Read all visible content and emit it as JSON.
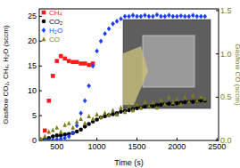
{
  "chart_data": {
    "type": "scatter",
    "x_label": "Time (s)",
    "y_label": "Gasflow CO₂, CH₄, H₂O (sccm)",
    "y2_label": "Gasflow CO (sccm)",
    "xlim": [
      280,
      2520
    ],
    "xticks": [
      500,
      1000,
      1500,
      2000,
      2500
    ],
    "ylim": [
      0,
      26.5
    ],
    "yticks": [
      0,
      5,
      10,
      15,
      20,
      25
    ],
    "y2lim": [
      0,
      1.52
    ],
    "y2ticks": [
      {
        "value": 0,
        "label": "0.0"
      },
      {
        "value": 0.5,
        "label": "0.5"
      },
      {
        "value": 1,
        "label": "1.0"
      },
      {
        "value": 1.5,
        "label": "1.5"
      }
    ],
    "legend": "upper left",
    "series": [
      {
        "name": "CH₄",
        "color": "#ff1a1a",
        "marker": "square",
        "x": [
          300,
          350,
          400,
          450,
          500,
          550,
          600,
          650,
          700,
          750,
          800,
          850,
          900,
          950
        ],
        "values": [
          0,
          2,
          8,
          13,
          16,
          17,
          16.5,
          16,
          15.8,
          15.8,
          15.5,
          15.5,
          15.2,
          15.5
        ]
      },
      {
        "name": "CO₂",
        "color": "#000000",
        "marker": "circle",
        "x": [
          300,
          350,
          400,
          450,
          500,
          550,
          600,
          650,
          700,
          750,
          800,
          850,
          900,
          950,
          1000,
          1050,
          1100,
          1150,
          1200,
          1250,
          1300,
          1350,
          1400,
          1450,
          1500,
          1550,
          1600,
          1650,
          1700,
          1750,
          1800,
          1850,
          1900,
          1950,
          2000,
          2050,
          2100,
          2150,
          2200,
          2250,
          2300,
          2350
        ],
        "values": [
          0,
          0.2,
          0.5,
          0.8,
          1,
          1,
          1.2,
          1.3,
          1.5,
          1.8,
          2.2,
          2.8,
          3.3,
          3.8,
          4.2,
          4.6,
          4.9,
          5.1,
          5.3,
          5.5,
          5.8,
          6,
          6.1,
          6.3,
          6.5,
          6.6,
          6.8,
          6.9,
          7,
          7.1,
          7.2,
          7.3,
          7.4,
          7.4,
          7.5,
          7.6,
          7.7,
          7.8,
          7.8,
          7.9,
          8,
          8
        ]
      },
      {
        "name": "H₂O",
        "color": "#1f3fff",
        "marker": "diamond",
        "x": [
          300,
          350,
          400,
          450,
          500,
          550,
          600,
          650,
          700,
          750,
          800,
          850,
          900,
          950,
          1000,
          1050,
          1100,
          1150,
          1200,
          1250,
          1300,
          1350,
          1400,
          1450,
          1500,
          1550,
          1600,
          1650,
          1700,
          1750,
          1800,
          1850,
          1900,
          1950,
          2000,
          2050,
          2100,
          2150,
          2200,
          2250,
          2300,
          2350
        ],
        "values": [
          0,
          0,
          0,
          0.1,
          0.2,
          0.3,
          0.5,
          0.8,
          1.5,
          3,
          5.5,
          8,
          11,
          15,
          18,
          20,
          21.5,
          22.5,
          23.5,
          24,
          24.5,
          25,
          25,
          25.2,
          25,
          25,
          25.2,
          25,
          25,
          25.3,
          25,
          25,
          25.2,
          25,
          25,
          25.1,
          25,
          25,
          25.2,
          25,
          25,
          25
        ]
      },
      {
        "name": "CO",
        "color": "#7d7d1e",
        "marker": "triangle",
        "axis": "y2",
        "x": [
          300,
          350,
          400,
          450,
          500,
          550,
          600,
          650,
          700,
          750,
          800,
          850,
          900,
          950,
          1000,
          1050,
          1100,
          1150,
          1200,
          1250,
          1300,
          1350,
          1400,
          1450,
          1500,
          1550,
          1600,
          1650,
          1700,
          1750,
          1800,
          1850,
          1900,
          1950,
          2000,
          2050,
          2100,
          2150,
          2200,
          2250,
          2300,
          2350
        ],
        "values": [
          0.02,
          0.05,
          0.1,
          0.12,
          0.15,
          0.1,
          0.18,
          0.2,
          0.15,
          0.22,
          0.25,
          0.2,
          0.28,
          0.25,
          0.3,
          0.27,
          0.32,
          0.3,
          0.35,
          0.3,
          0.38,
          0.33,
          0.4,
          0.35,
          0.42,
          0.38,
          0.45,
          0.4,
          0.44,
          0.38,
          0.47,
          0.42,
          0.5,
          0.44,
          0.48,
          0.42,
          0.5,
          0.45,
          0.52,
          0.46,
          0.5,
          0.48
        ]
      }
    ]
  }
}
